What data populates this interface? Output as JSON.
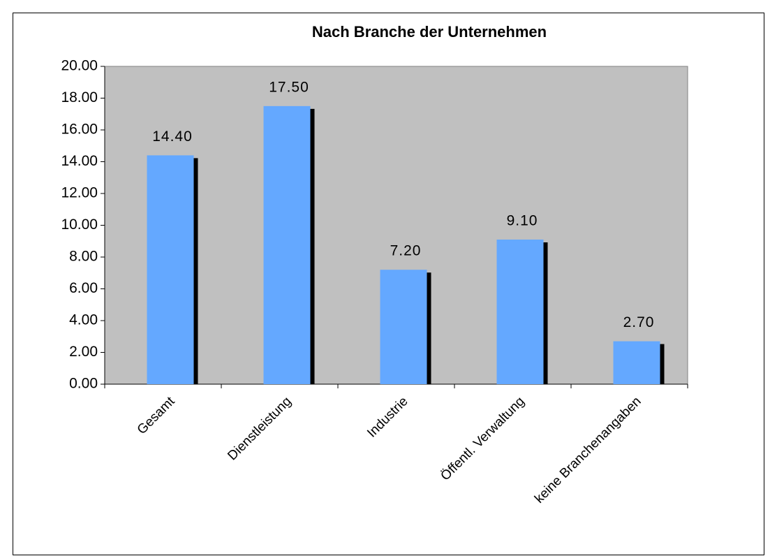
{
  "chart_data": {
    "type": "bar",
    "title": "Nach Branche der Unternehmen",
    "categories": [
      "Gesamt",
      "Dienstleistung",
      "Industrie",
      "Öffentl. Verwaltung",
      "keine Branchenangaben"
    ],
    "values": [
      14.4,
      17.5,
      7.2,
      9.1,
      2.7
    ],
    "value_labels": [
      "14.40",
      "17.50",
      "7.20",
      "9.10",
      "2.70"
    ],
    "color": "#64a8ff",
    "ylim": [
      0,
      20
    ],
    "yticks": [
      {
        "value": 0,
        "label": "0.00"
      },
      {
        "value": 2,
        "label": "2.00"
      },
      {
        "value": 4,
        "label": "4.00"
      },
      {
        "value": 6,
        "label": "6.00"
      },
      {
        "value": 8,
        "label": "8.00"
      },
      {
        "value": 10,
        "label": "10.00"
      },
      {
        "value": 12,
        "label": "12.00"
      },
      {
        "value": 14,
        "label": "14.00"
      },
      {
        "value": 16,
        "label": "16.00"
      },
      {
        "value": 18,
        "label": "18.00"
      },
      {
        "value": 20,
        "label": "20.00"
      }
    ],
    "grid": false
  }
}
